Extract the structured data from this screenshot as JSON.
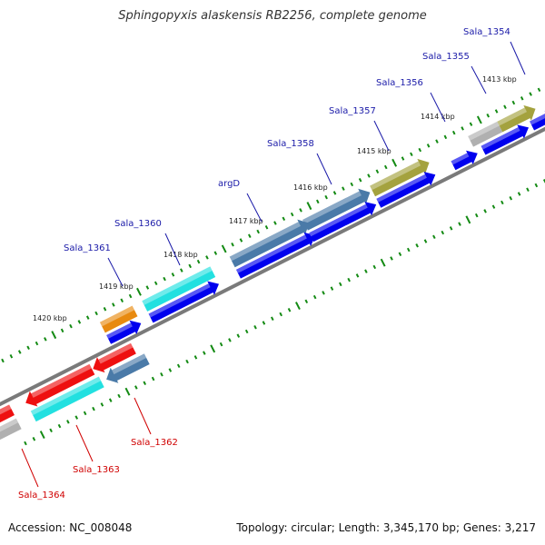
{
  "title": "Sphingopyxis alaskensis RB2256, complete genome",
  "footer": {
    "accession": "Accession: NC_008048",
    "summary": "Topology: circular; Length: 3,345,170 bp; Genes: 3,217"
  },
  "colors": {
    "label_top": "#1a1aa8",
    "label_bottom": "#d00000",
    "cds": "#0000ee",
    "backbone": "#7a7a7a",
    "ticks": "#138a13",
    "tick_text": "#222222"
  },
  "ticks": [
    {
      "label": "1413 kbp"
    },
    {
      "label": "1414 kbp"
    },
    {
      "label": "1415 kbp"
    },
    {
      "label": "1416 kbp"
    },
    {
      "label": "1417 kbp"
    },
    {
      "label": "1418 kbp"
    },
    {
      "label": "1419 kbp"
    },
    {
      "label": "1420 kbp"
    }
  ],
  "genes_forward": [
    {
      "name": "Sala_1354",
      "color": "#a4a23e"
    },
    {
      "name": "Sala_1355",
      "color": "#b0b0b0"
    },
    {
      "name": "Sala_1356",
      "color": "#a4a23e"
    },
    {
      "name": "Sala_1357",
      "color": "#a4a23e"
    },
    {
      "name": "Sala_1358",
      "color": "#4a7aa8"
    },
    {
      "name": "argD",
      "color": "#4a7aa8"
    },
    {
      "name": "Sala_1360",
      "color": "#22e0e0"
    },
    {
      "name": "Sala_1361",
      "color": "#e88a10"
    }
  ],
  "genes_reverse": [
    {
      "name": "Sala_1362",
      "color": "#4a7aa8"
    },
    {
      "name": "Sala_1363",
      "color": "#22e0e0"
    },
    {
      "name": "Sala_1364",
      "color": "#b0b0b0"
    }
  ],
  "red_features": {
    "color": "#ee1010"
  }
}
